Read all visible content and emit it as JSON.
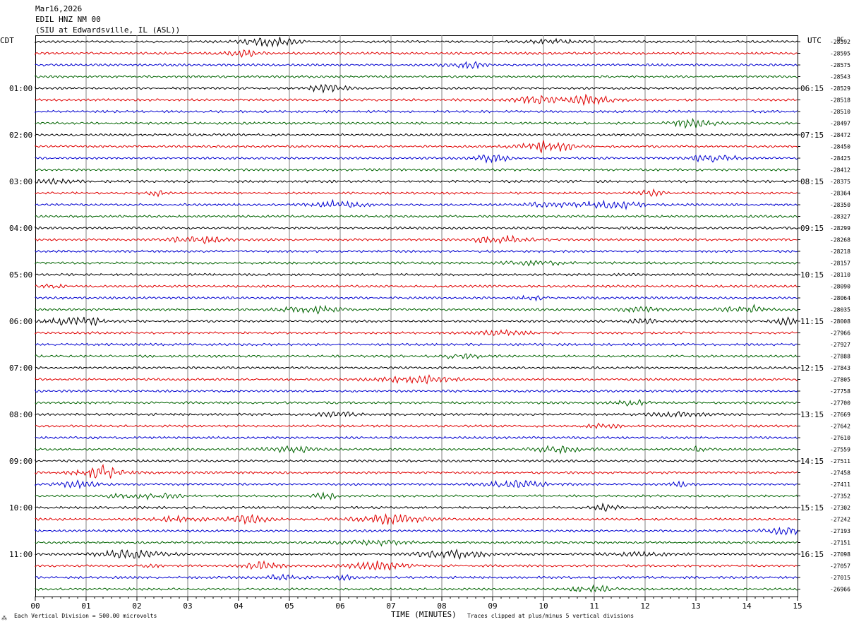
{
  "header": {
    "date": "Mar16,2026",
    "station": "EDIL HNZ NM 00",
    "location": "(SIU at Edwardsville, IL  (ASL))"
  },
  "left_timezone": "CDT",
  "right_timezone": "UTC",
  "dc_label": "DC",
  "footer": {
    "scale_note": "Each Vertical Division =  500.00 microvolts",
    "xlabel": "TIME (MINUTES)",
    "clip_note": "Traces clipped at plus/minus 5 vertical divisions",
    "corner_mark": "⁂"
  },
  "chart_data": {
    "type": "line",
    "title": "",
    "xlabel": "TIME (MINUTES)",
    "ylabel": "",
    "xlim": [
      0,
      15
    ],
    "x_ticks": [
      "00",
      "01",
      "02",
      "03",
      "04",
      "05",
      "06",
      "07",
      "08",
      "09",
      "10",
      "11",
      "12",
      "13",
      "14",
      "15"
    ],
    "grid": true,
    "trace_colors": [
      "#000000",
      "#e00000",
      "#0000d0",
      "#006400"
    ],
    "left_hour_labels": [
      "01:00",
      "02:00",
      "03:00",
      "04:00",
      "05:00",
      "06:00",
      "07:00",
      "08:00",
      "09:00",
      "10:00",
      "11:00"
    ],
    "right_hour_labels": [
      "06:15",
      "07:15",
      "08:15",
      "09:15",
      "10:15",
      "11:15",
      "12:15",
      "13:15",
      "14:15",
      "15:15",
      "16:15"
    ],
    "dc_offsets": [
      "-28592",
      "-28595",
      "-28575",
      "-28543",
      "-28529",
      "-28518",
      "-28510",
      "-28497",
      "-28472",
      "-28450",
      "-28425",
      "-28412",
      "-28375",
      "-28364",
      "-28350",
      "-28327",
      "-28299",
      "-28268",
      "-28218",
      "-28157",
      "-28110",
      "-28090",
      "-28064",
      "-28035",
      "-28008",
      "-27966",
      "-27927",
      "-27888",
      "-27843",
      "-27805",
      "-27758",
      "-27700",
      "-27669",
      "-27642",
      "-27610",
      "-27559",
      "-27511",
      "-27458",
      "-27411",
      "-27352",
      "-27302",
      "-27242",
      "-27193",
      "-27151",
      "-27098",
      "-27057",
      "-27015",
      "-26966"
    ],
    "traces_count": 48
  }
}
